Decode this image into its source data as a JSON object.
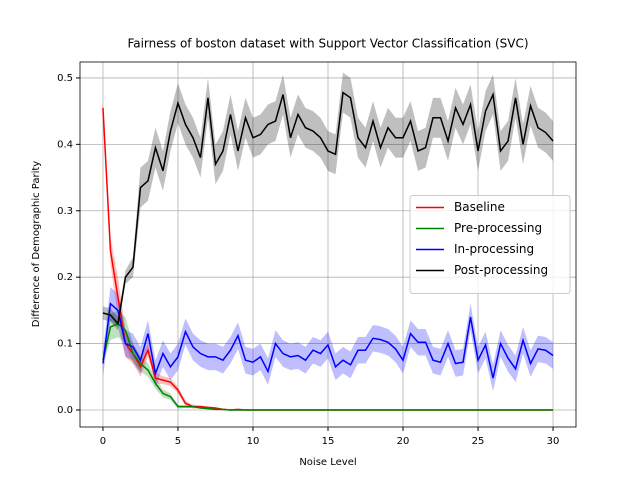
{
  "chart_data": {
    "type": "line",
    "title": "Fairness of boston dataset with Support Vector Classification (SVC)",
    "x_label": "Noise Level",
    "y_label": "Difference of Demographic Parity",
    "x": [
      0,
      0.5,
      1,
      1.5,
      2,
      2.5,
      3,
      3.5,
      4,
      4.5,
      5,
      5.5,
      6,
      6.5,
      7,
      7.5,
      8,
      8.5,
      9,
      9.5,
      10,
      10.5,
      11,
      11.5,
      12,
      12.5,
      13,
      13.5,
      14,
      14.5,
      15,
      15.5,
      16,
      16.5,
      17,
      17.5,
      18,
      18.5,
      19,
      19.5,
      20,
      20.5,
      21,
      21.5,
      22,
      22.5,
      23,
      23.5,
      24,
      24.5,
      25,
      25.5,
      26,
      26.5,
      27,
      27.5,
      28,
      28.5,
      29,
      29.5,
      30
    ],
    "xlim": [
      -1.53,
      31.53
    ],
    "xticks": [
      0,
      5,
      10,
      15,
      20,
      25,
      30
    ],
    "ylim": [
      -0.0256,
      0.524
    ],
    "yticks": [
      {
        "value": 0,
        "label": "0.0"
      },
      0.1,
      0.2,
      0.3,
      0.4,
      0.5
    ],
    "grid": true,
    "legend": "center right",
    "series": [
      {
        "name": "Baseline",
        "color": "#ff0000",
        "values": [
          0.455,
          0.24,
          0.17,
          0.1,
          0.085,
          0.065,
          0.09,
          0.048,
          0.045,
          0.042,
          0.03,
          0.01,
          0.005,
          0.005,
          0.004,
          0.003,
          0.001,
          0,
          0.001,
          0,
          0,
          0,
          0,
          0,
          0,
          0,
          0,
          0,
          0,
          0,
          0,
          0,
          0,
          0,
          0,
          0,
          0,
          0,
          0,
          0,
          0,
          0,
          0,
          0,
          0,
          0,
          0,
          0,
          0,
          0,
          0,
          0,
          0,
          0,
          0,
          0,
          0,
          0,
          0,
          0,
          0
        ],
        "ci": [
          0.005,
          0.02,
          0.03,
          0.02,
          0.015,
          0.015,
          0.01,
          0.008,
          0.006,
          0.006,
          0.005,
          0.004,
          0.003,
          0.002,
          0.001,
          0.001,
          0.001,
          0,
          0,
          0,
          0,
          0,
          0,
          0,
          0,
          0,
          0,
          0,
          0,
          0,
          0,
          0,
          0,
          0,
          0,
          0,
          0,
          0,
          0,
          0,
          0,
          0,
          0,
          0,
          0,
          0,
          0,
          0,
          0,
          0,
          0,
          0,
          0,
          0,
          0,
          0,
          0,
          0,
          0,
          0,
          0
        ]
      },
      {
        "name": "Pre-processing",
        "color": "#008000",
        "values": [
          0.075,
          0.125,
          0.13,
          0.12,
          0.085,
          0.07,
          0.06,
          0.04,
          0.025,
          0.02,
          0.005,
          0.005,
          0.005,
          0.003,
          0.002,
          0.001,
          0.001,
          0,
          0,
          0,
          0,
          0,
          0,
          0,
          0,
          0,
          0,
          0,
          0,
          0,
          0,
          0,
          0,
          0,
          0,
          0,
          0,
          0,
          0,
          0,
          0,
          0,
          0,
          0,
          0,
          0,
          0,
          0,
          0,
          0,
          0,
          0,
          0,
          0,
          0,
          0,
          0,
          0,
          0,
          0,
          0
        ],
        "ci": [
          0.005,
          0.02,
          0.02,
          0.02,
          0.015,
          0.012,
          0.01,
          0.008,
          0.006,
          0.005,
          0.003,
          0.002,
          0.002,
          0.001,
          0.001,
          0,
          0,
          0,
          0,
          0,
          0,
          0,
          0,
          0,
          0,
          0,
          0,
          0,
          0,
          0,
          0,
          0,
          0,
          0,
          0,
          0,
          0,
          0,
          0,
          0,
          0,
          0,
          0,
          0,
          0,
          0,
          0,
          0,
          0,
          0,
          0,
          0,
          0,
          0,
          0,
          0,
          0,
          0,
          0,
          0,
          0
        ]
      },
      {
        "name": "In-processing",
        "color": "#0000ff",
        "values": [
          0.07,
          0.16,
          0.15,
          0.1,
          0.095,
          0.075,
          0.115,
          0.055,
          0.085,
          0.065,
          0.08,
          0.118,
          0.095,
          0.085,
          0.08,
          0.08,
          0.075,
          0.09,
          0.112,
          0.075,
          0.072,
          0.08,
          0.058,
          0.1,
          0.085,
          0.08,
          0.082,
          0.075,
          0.09,
          0.085,
          0.098,
          0.065,
          0.075,
          0.068,
          0.09,
          0.09,
          0.108,
          0.106,
          0.102,
          0.092,
          0.075,
          0.115,
          0.102,
          0.102,
          0.075,
          0.072,
          0.1,
          0.07,
          0.072,
          0.14,
          0.075,
          0.098,
          0.048,
          0.1,
          0.078,
          0.062,
          0.105,
          0.07,
          0.092,
          0.09,
          0.082
        ],
        "ci": [
          0.02,
          0.025,
          0.025,
          0.02,
          0.02,
          0.02,
          0.02,
          0.02,
          0.02,
          0.02,
          0.02,
          0.02,
          0.02,
          0.02,
          0.02,
          0.02,
          0.02,
          0.02,
          0.02,
          0.02,
          0.02,
          0.02,
          0.02,
          0.02,
          0.02,
          0.02,
          0.02,
          0.02,
          0.02,
          0.02,
          0.02,
          0.02,
          0.02,
          0.02,
          0.02,
          0.02,
          0.02,
          0.02,
          0.02,
          0.02,
          0.02,
          0.02,
          0.02,
          0.02,
          0.02,
          0.02,
          0.02,
          0.02,
          0.02,
          0.02,
          0.02,
          0.02,
          0.02,
          0.02,
          0.02,
          0.02,
          0.02,
          0.02,
          0.02,
          0.02,
          0.02
        ]
      },
      {
        "name": "Post-processing",
        "color": "#000000",
        "values": [
          0.146,
          0.143,
          0.13,
          0.2,
          0.215,
          0.335,
          0.345,
          0.395,
          0.36,
          0.42,
          0.462,
          0.43,
          0.41,
          0.38,
          0.47,
          0.37,
          0.39,
          0.445,
          0.39,
          0.44,
          0.41,
          0.415,
          0.43,
          0.435,
          0.475,
          0.41,
          0.445,
          0.425,
          0.42,
          0.41,
          0.39,
          0.385,
          0.478,
          0.47,
          0.41,
          0.395,
          0.435,
          0.395,
          0.425,
          0.41,
          0.41,
          0.435,
          0.39,
          0.395,
          0.44,
          0.44,
          0.405,
          0.455,
          0.43,
          0.46,
          0.39,
          0.45,
          0.475,
          0.39,
          0.405,
          0.47,
          0.4,
          0.458,
          0.425,
          0.418,
          0.405
        ],
        "ci": [
          0.01,
          0.01,
          0.01,
          0.01,
          0.015,
          0.03,
          0.03,
          0.03,
          0.03,
          0.03,
          0.03,
          0.03,
          0.03,
          0.03,
          0.03,
          0.03,
          0.03,
          0.03,
          0.03,
          0.03,
          0.03,
          0.03,
          0.03,
          0.03,
          0.03,
          0.03,
          0.03,
          0.03,
          0.03,
          0.03,
          0.03,
          0.03,
          0.03,
          0.03,
          0.03,
          0.03,
          0.03,
          0.03,
          0.03,
          0.03,
          0.03,
          0.03,
          0.03,
          0.03,
          0.03,
          0.03,
          0.03,
          0.03,
          0.03,
          0.03,
          0.03,
          0.03,
          0.03,
          0.03,
          0.03,
          0.03,
          0.03,
          0.03,
          0.03,
          0.03,
          0.03
        ]
      }
    ]
  }
}
